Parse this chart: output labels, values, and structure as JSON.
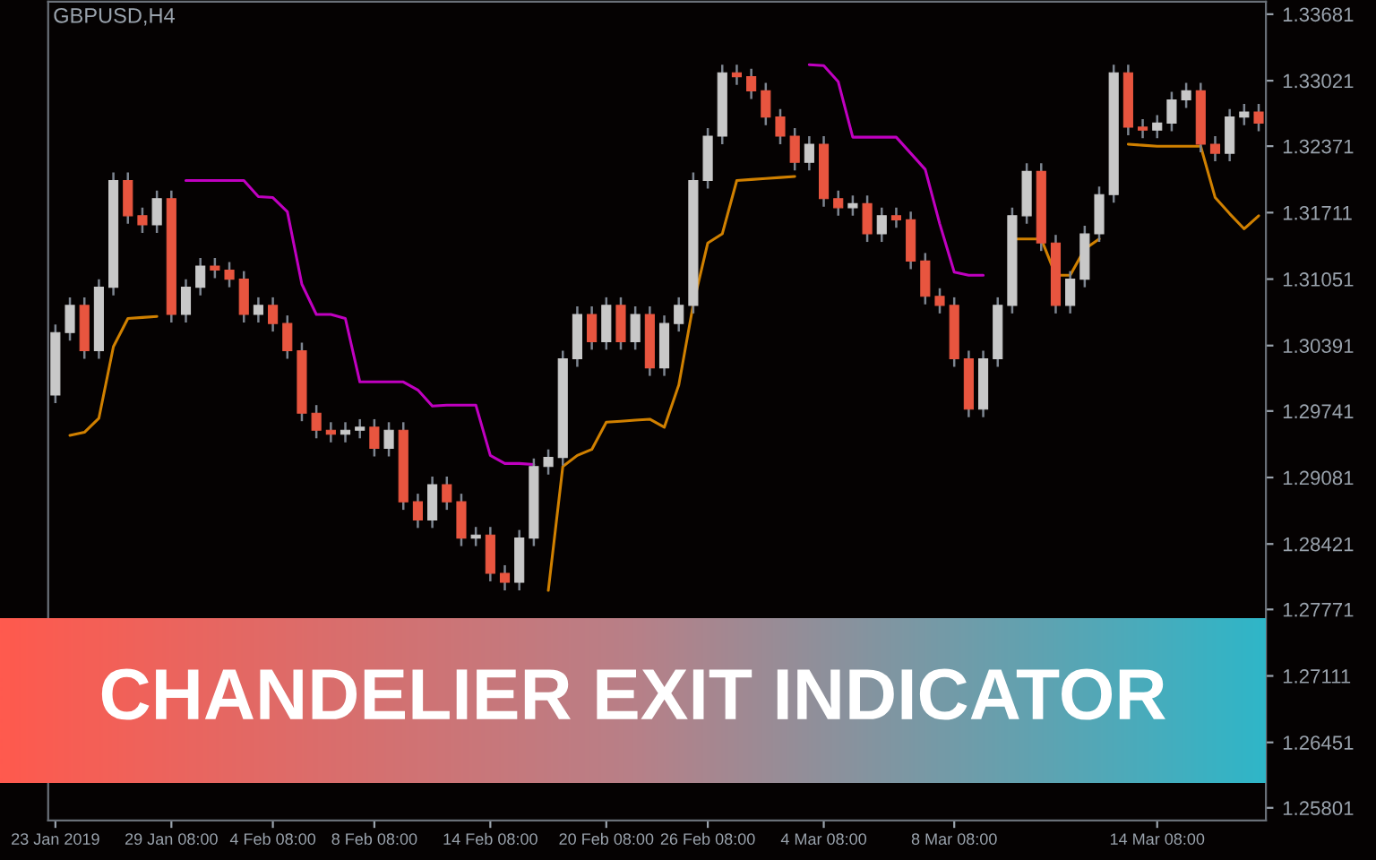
{
  "chart_data": {
    "type": "candlestick",
    "title": "CHANDELIER EXIT INDICATOR",
    "annotations": [
      "GBPUSD,H4"
    ],
    "categories": [
      "23 Jan 2019",
      null,
      null,
      null,
      null,
      null,
      null,
      null,
      "29 Jan 08:00",
      null,
      null,
      null,
      null,
      null,
      null,
      "4 Feb 08:00",
      null,
      null,
      null,
      null,
      null,
      null,
      "8 Feb 08:00",
      null,
      null,
      null,
      null,
      null,
      null,
      null,
      "14 Feb 08:00",
      null,
      null,
      null,
      null,
      null,
      null,
      null,
      "20 Feb 08:00",
      null,
      null,
      null,
      null,
      null,
      null,
      "26 Feb 08:00",
      null,
      null,
      null,
      null,
      null,
      null,
      null,
      "4 Mar 08:00",
      null,
      null,
      null,
      null,
      null,
      null,
      null,
      null,
      "8 Mar 08:00",
      null,
      null,
      null,
      null,
      null,
      null,
      null,
      null,
      null,
      null,
      null,
      null,
      null,
      "14 Mar 08:00",
      null,
      null,
      null,
      null,
      null,
      null,
      null
    ],
    "ohlc": [
      [
        1.299,
        1.306,
        1.2982,
        1.3052
      ],
      [
        1.3052,
        1.3087,
        1.3044,
        1.3079
      ],
      [
        1.3079,
        1.3087,
        1.3026,
        1.3034
      ],
      [
        1.3034,
        1.3105,
        1.3026,
        1.3097
      ],
      [
        1.3097,
        1.3211,
        1.3089,
        1.3203
      ],
      [
        1.3203,
        1.3211,
        1.316,
        1.3168
      ],
      [
        1.3168,
        1.3176,
        1.3151,
        1.3159
      ],
      [
        1.3159,
        1.3193,
        1.3151,
        1.3185
      ],
      [
        1.3185,
        1.3193,
        1.3062,
        1.307
      ],
      [
        1.307,
        1.3105,
        1.3062,
        1.3097
      ],
      [
        1.3097,
        1.3126,
        1.3089,
        1.3118
      ],
      [
        1.3118,
        1.3126,
        1.3106,
        1.3114
      ],
      [
        1.3114,
        1.3122,
        1.3097,
        1.3105
      ],
      [
        1.3105,
        1.3113,
        1.3062,
        1.307
      ],
      [
        1.307,
        1.3087,
        1.3062,
        1.3079
      ],
      [
        1.3079,
        1.3087,
        1.3053,
        1.3061
      ],
      [
        1.3061,
        1.3069,
        1.3026,
        1.3034
      ],
      [
        1.3034,
        1.3042,
        1.2964,
        1.2972
      ],
      [
        1.2972,
        1.298,
        1.2947,
        1.2955
      ],
      [
        1.2955,
        1.2963,
        1.2943,
        1.2951
      ],
      [
        1.2951,
        1.2963,
        1.2943,
        1.2955
      ],
      [
        1.2955,
        1.2966,
        1.2947,
        1.2958
      ],
      [
        1.2958,
        1.2966,
        1.2929,
        1.2937
      ],
      [
        1.2937,
        1.2963,
        1.2929,
        1.2955
      ],
      [
        1.2955,
        1.2963,
        1.2876,
        1.2884
      ],
      [
        1.2884,
        1.2892,
        1.2858,
        1.2866
      ],
      [
        1.2866,
        1.2909,
        1.2858,
        1.2901
      ],
      [
        1.2901,
        1.2909,
        1.2876,
        1.2884
      ],
      [
        1.2884,
        1.2892,
        1.284,
        1.2848
      ],
      [
        1.2848,
        1.2859,
        1.284,
        1.2851
      ],
      [
        1.2851,
        1.2859,
        1.2805,
        1.2813
      ],
      [
        1.2813,
        1.2821,
        1.2796,
        1.2804
      ],
      [
        1.2804,
        1.2856,
        1.2796,
        1.2848
      ],
      [
        1.2848,
        1.2927,
        1.284,
        1.2919
      ],
      [
        1.2919,
        1.2936,
        1.2911,
        1.2928
      ],
      [
        1.2928,
        1.3034,
        1.292,
        1.3026
      ],
      [
        1.3026,
        1.3078,
        1.3018,
        1.307
      ],
      [
        1.307,
        1.3078,
        1.3035,
        1.3043
      ],
      [
        1.3043,
        1.3087,
        1.3035,
        1.3079
      ],
      [
        1.3079,
        1.3087,
        1.3035,
        1.3043
      ],
      [
        1.3043,
        1.3078,
        1.3035,
        1.307
      ],
      [
        1.307,
        1.3078,
        1.3009,
        1.3017
      ],
      [
        1.3017,
        1.3069,
        1.3009,
        1.3061
      ],
      [
        1.3061,
        1.3087,
        1.3053,
        1.3079
      ],
      [
        1.3079,
        1.3211,
        1.3071,
        1.3203
      ],
      [
        1.3203,
        1.3255,
        1.3195,
        1.3247
      ],
      [
        1.3247,
        1.3318,
        1.3239,
        1.331
      ],
      [
        1.331,
        1.3318,
        1.3298,
        1.3306
      ],
      [
        1.3306,
        1.3314,
        1.3284,
        1.3292
      ],
      [
        1.3292,
        1.33,
        1.3258,
        1.3266
      ],
      [
        1.3266,
        1.3274,
        1.3239,
        1.3247
      ],
      [
        1.3247,
        1.3255,
        1.3213,
        1.3221
      ],
      [
        1.3221,
        1.3247,
        1.3213,
        1.3239
      ],
      [
        1.3239,
        1.3247,
        1.3177,
        1.3185
      ],
      [
        1.3185,
        1.3193,
        1.3168,
        1.3176
      ],
      [
        1.3176,
        1.3188,
        1.3168,
        1.318
      ],
      [
        1.318,
        1.3188,
        1.3142,
        1.315
      ],
      [
        1.315,
        1.3176,
        1.3142,
        1.3168
      ],
      [
        1.3168,
        1.3176,
        1.3156,
        1.3164
      ],
      [
        1.3164,
        1.3172,
        1.3115,
        1.3123
      ],
      [
        1.3123,
        1.3131,
        1.308,
        1.3088
      ],
      [
        1.3088,
        1.3096,
        1.3071,
        1.3079
      ],
      [
        1.3079,
        1.3087,
        1.3018,
        1.3026
      ],
      [
        1.3026,
        1.3034,
        1.2968,
        1.2976
      ],
      [
        1.2976,
        1.3034,
        1.2968,
        1.3026
      ],
      [
        1.3026,
        1.3087,
        1.3018,
        1.3079
      ],
      [
        1.3079,
        1.3176,
        1.3071,
        1.3168
      ],
      [
        1.3168,
        1.322,
        1.316,
        1.3212
      ],
      [
        1.3212,
        1.322,
        1.3133,
        1.3141
      ],
      [
        1.3141,
        1.3149,
        1.3071,
        1.3079
      ],
      [
        1.3079,
        1.3113,
        1.3071,
        1.3105
      ],
      [
        1.3105,
        1.3158,
        1.3097,
        1.315
      ],
      [
        1.315,
        1.3197,
        1.3142,
        1.3189
      ],
      [
        1.3189,
        1.3318,
        1.3181,
        1.331
      ],
      [
        1.331,
        1.3318,
        1.3248,
        1.3256
      ],
      [
        1.3256,
        1.3264,
        1.3245,
        1.3253
      ],
      [
        1.3253,
        1.3268,
        1.3245,
        1.326
      ],
      [
        1.326,
        1.3291,
        1.3252,
        1.3283
      ],
      [
        1.3283,
        1.33,
        1.3275,
        1.3292
      ],
      [
        1.3292,
        1.33,
        1.3231,
        1.3239
      ],
      [
        1.3239,
        1.3247,
        1.3222,
        1.323
      ],
      [
        1.323,
        1.3274,
        1.3222,
        1.3266
      ],
      [
        1.3266,
        1.3279,
        1.3258,
        1.3271
      ],
      [
        1.3271,
        1.3279,
        1.3252,
        1.326
      ]
    ],
    "colors": [
      "#c8c8c8",
      "#c8c8c8",
      "#e8553f",
      "#c8c8c8",
      "#c8c8c8",
      "#e8553f",
      "#e8553f",
      "#c8c8c8",
      "#e8553f",
      "#c8c8c8",
      "#c8c8c8",
      "#e8553f",
      "#e8553f",
      "#e8553f",
      "#c8c8c8",
      "#e8553f",
      "#e8553f",
      "#e8553f",
      "#e8553f",
      "#e8553f",
      "#c8c8c8",
      "#c8c8c8",
      "#e8553f",
      "#c8c8c8",
      "#e8553f",
      "#e8553f",
      "#c8c8c8",
      "#e8553f",
      "#e8553f",
      "#c8c8c8",
      "#e8553f",
      "#e8553f",
      "#c8c8c8",
      "#c8c8c8",
      "#c8c8c8",
      "#c8c8c8",
      "#c8c8c8",
      "#e8553f",
      "#c8c8c8",
      "#e8553f",
      "#c8c8c8",
      "#e8553f",
      "#c8c8c8",
      "#c8c8c8",
      "#c8c8c8",
      "#c8c8c8",
      "#c8c8c8",
      "#e8553f",
      "#e8553f",
      "#e8553f",
      "#e8553f",
      "#e8553f",
      "#c8c8c8",
      "#e8553f",
      "#e8553f",
      "#c8c8c8",
      "#e8553f",
      "#c8c8c8",
      "#e8553f",
      "#e8553f",
      "#e8553f",
      "#e8553f",
      "#e8553f",
      "#e8553f",
      "#c8c8c8",
      "#c8c8c8",
      "#c8c8c8",
      "#c8c8c8",
      "#e8553f",
      "#e8553f",
      "#c8c8c8",
      "#c8c8c8",
      "#c8c8c8",
      "#c8c8c8",
      "#e8553f",
      "#e8553f",
      "#c8c8c8",
      "#c8c8c8",
      "#c8c8c8",
      "#e8553f",
      "#e8553f",
      "#c8c8c8",
      "#c8c8c8",
      "#e8553f"
    ],
    "series": [
      {
        "type": "line",
        "color": "#d08000",
        "values": [
          null,
          1.295,
          1.2953,
          1.2967,
          1.3038,
          1.3066,
          1.3067,
          1.3068,
          null,
          null,
          null,
          null,
          null,
          null,
          null,
          null,
          null,
          null,
          null,
          null,
          null,
          null,
          null,
          null,
          null,
          null,
          null,
          null,
          null,
          null,
          null,
          null,
          null,
          null,
          1.2796,
          1.2919,
          1.293,
          1.2936,
          1.2963,
          1.2964,
          1.2965,
          1.2966,
          1.2958,
          1.3,
          1.308,
          1.3141,
          1.315,
          1.3203,
          1.3204,
          1.3205,
          1.3206,
          1.3207,
          null,
          null,
          null,
          null,
          null,
          null,
          null,
          null,
          null,
          null,
          null,
          null,
          null,
          null,
          1.3145,
          1.3145,
          1.3145,
          1.3109,
          1.3109,
          1.3135,
          1.3145,
          null,
          1.3239,
          1.3238,
          1.3237,
          1.3237,
          1.3237,
          1.3237,
          1.3186,
          1.317,
          1.3155,
          1.3168
        ]
      },
      {
        "type": "line",
        "color": "#c000c0",
        "values": [
          null,
          null,
          null,
          null,
          null,
          null,
          null,
          null,
          null,
          1.3203,
          1.3203,
          1.3203,
          1.3203,
          1.3203,
          1.3187,
          1.3186,
          1.3172,
          1.31,
          1.307,
          1.307,
          1.3066,
          1.3003,
          1.3003,
          1.3003,
          1.3003,
          1.2995,
          1.2979,
          1.298,
          1.298,
          1.298,
          1.293,
          1.2922,
          1.2922,
          1.2921,
          null,
          null,
          null,
          null,
          null,
          null,
          null,
          null,
          null,
          null,
          null,
          null,
          null,
          null,
          null,
          null,
          null,
          null,
          1.3318,
          1.3317,
          1.3301,
          1.3246,
          1.3246,
          1.3246,
          1.3246,
          1.323,
          1.3214,
          1.316,
          1.3112,
          1.3109,
          1.3109,
          null,
          null,
          null,
          null,
          null,
          null,
          null,
          null,
          null,
          null,
          null,
          null,
          null,
          null,
          null,
          null,
          null,
          null,
          null
        ]
      }
    ],
    "ylim": [
      1.25676,
      1.33805
    ],
    "yticks": [
      1.33681,
      1.33021,
      1.32371,
      1.31711,
      1.31051,
      1.30391,
      1.29741,
      1.29081,
      1.28421,
      1.27771,
      1.27111,
      1.26451,
      1.25801
    ],
    "grid": false,
    "legend": false
  }
}
